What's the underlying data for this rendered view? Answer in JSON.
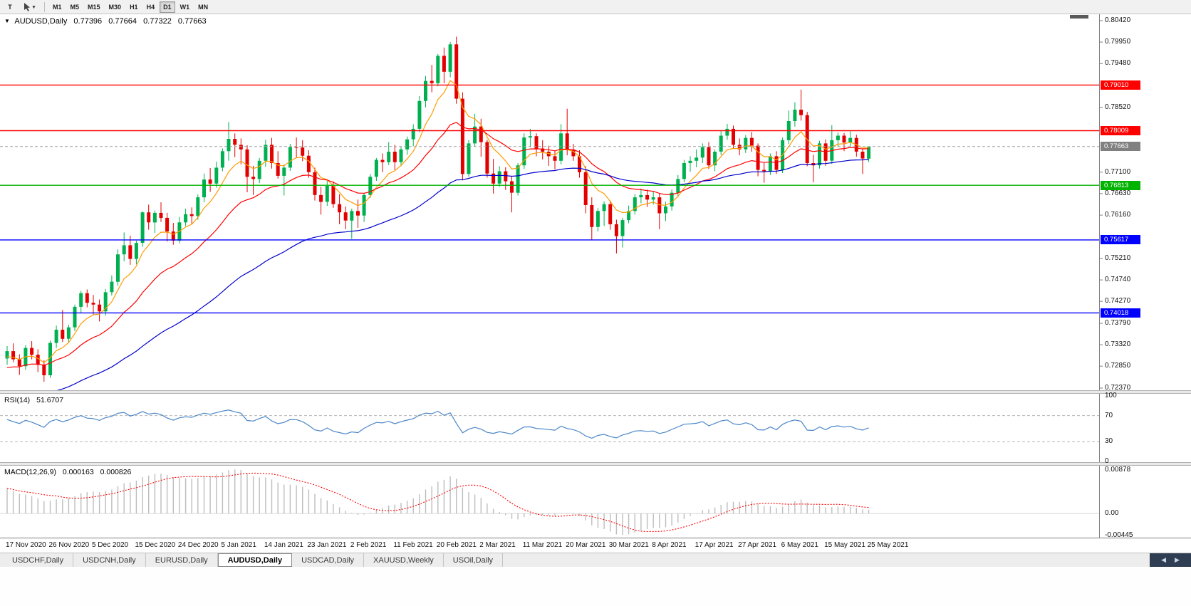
{
  "toolbar": {
    "t_label": "T",
    "timeframes": [
      "M1",
      "M5",
      "M15",
      "M30",
      "H1",
      "H4",
      "D1",
      "W1",
      "MN"
    ],
    "active_timeframe": "D1"
  },
  "icons": {
    "one_click_trading": "▼",
    "pointer_dropdown": "▾",
    "tab_scroll_left": "◀",
    "tab_scroll_right": "▶"
  },
  "chart": {
    "title": "AUDUSD,Daily",
    "open": "0.77396",
    "high": "0.77664",
    "low": "0.77322",
    "close": "0.77663"
  },
  "rsi": {
    "label": "RSI(14)",
    "value": "51.6707",
    "axis": [
      {
        "label": "100",
        "value": 100
      },
      {
        "label": "70",
        "value": 70
      },
      {
        "label": "30",
        "value": 30
      },
      {
        "label": "0",
        "value": 0
      }
    ]
  },
  "macd": {
    "label": "MACD(12,26,9)",
    "value_main": "0.000163",
    "value_signal": "0.000826",
    "axis": [
      {
        "label": "0.00878",
        "value": 0.00878
      },
      {
        "label": "0.00",
        "value": 0
      },
      {
        "label": "-0.00445",
        "value": -0.00445
      }
    ]
  },
  "price_axis": {
    "ticks": [
      "0.80420",
      "0.79950",
      "0.79480",
      "0.78520",
      "0.77100",
      "0.76630",
      "0.76160",
      "0.75210",
      "0.74740",
      "0.74270",
      "0.73790",
      "0.73320",
      "0.72850",
      "0.72370"
    ]
  },
  "tabs": {
    "items": [
      "USDCHF,Daily",
      "USDCNH,Daily",
      "EURUSD,Daily",
      "AUDUSD,Daily",
      "USDCAD,Daily",
      "XAUUSD,Weekly",
      "USOil,Daily"
    ],
    "active_index": 3
  },
  "chart_data": {
    "type": "candlestick",
    "symbol": "AUDUSD",
    "period": "Daily",
    "current_ohlc": {
      "open": 0.77396,
      "high": 0.77664,
      "low": 0.77322,
      "close": 0.77663
    },
    "colors": {
      "up": "#00b050",
      "down": "#e30000"
    },
    "y_range": [
      0.7237,
      0.8042
    ],
    "x_ticks": [
      {
        "label": "17 Nov 2020",
        "i": 0
      },
      {
        "label": "26 Nov 2020",
        "i": 7
      },
      {
        "label": "5 Dec 2020",
        "i": 14
      },
      {
        "label": "15 Dec 2020",
        "i": 21
      },
      {
        "label": "24 Dec 2020",
        "i": 28
      },
      {
        "label": "5 Jan 2021",
        "i": 35
      },
      {
        "label": "14 Jan 2021",
        "i": 42
      },
      {
        "label": "23 Jan 2021",
        "i": 49
      },
      {
        "label": "2 Feb 2021",
        "i": 56
      },
      {
        "label": "11 Feb 2021",
        "i": 63
      },
      {
        "label": "20 Feb 2021",
        "i": 70
      },
      {
        "label": "2 Mar 2021",
        "i": 77
      },
      {
        "label": "11 Mar 2021",
        "i": 84
      },
      {
        "label": "20 Mar 2021",
        "i": 91
      },
      {
        "label": "30 Mar 2021",
        "i": 98
      },
      {
        "label": "8 Apr 2021",
        "i": 105
      },
      {
        "label": "17 Apr 2021",
        "i": 112
      },
      {
        "label": "27 Apr 2021",
        "i": 119
      },
      {
        "label": "6 May 2021",
        "i": 126
      },
      {
        "label": "15 May 2021",
        "i": 133
      },
      {
        "label": "25 May 2021",
        "i": 140
      }
    ],
    "levels": [
      {
        "price": 0.7901,
        "label": "0.79010",
        "color": "#ff0000",
        "type": "resistance"
      },
      {
        "price": 0.78009,
        "label": "0.78009",
        "color": "#ff0000",
        "type": "resistance"
      },
      {
        "price": 0.77663,
        "label": "0.77663",
        "color": "#808080",
        "type": "current-price"
      },
      {
        "price": 0.76813,
        "label": "0.76813",
        "color": "#00b300",
        "type": "support"
      },
      {
        "price": 0.75617,
        "label": "0.75617",
        "color": "#0000ff",
        "type": "support"
      },
      {
        "price": 0.74018,
        "label": "0.74018",
        "color": "#0000ff",
        "type": "support"
      }
    ],
    "moving_averages": [
      {
        "period": 7,
        "color": "#ff9c00",
        "seed": 0.7302
      },
      {
        "period": 20,
        "color": "#ff0000",
        "seed": 0.7278
      },
      {
        "period": 55,
        "color": "#0000cc",
        "seed": 0.72
      }
    ],
    "subcharts": [
      {
        "name": "RSI",
        "params": "14",
        "value": 51.6707,
        "range": [
          0,
          100
        ],
        "levels": [
          70,
          30
        ],
        "color": "#4a86c8",
        "seed_gain": 0.0016,
        "seed_loss": 0.0009
      },
      {
        "name": "MACD",
        "params": "12,26,9",
        "value_main": 0.000163,
        "value_signal": 0.000826,
        "range": [
          -0.00445,
          0.00878
        ],
        "bar_color": "#bdbdbd",
        "signal_color": "#ff0000",
        "fast": 12,
        "slow": 26,
        "signal": 9
      }
    ],
    "candles_ohlc": [
      [
        0.7302,
        0.7329,
        0.7288,
        0.7318
      ],
      [
        0.7318,
        0.7335,
        0.7294,
        0.73
      ],
      [
        0.73,
        0.7311,
        0.7266,
        0.7285
      ],
      [
        0.7285,
        0.7331,
        0.7277,
        0.7325
      ],
      [
        0.7325,
        0.734,
        0.73,
        0.731
      ],
      [
        0.731,
        0.7322,
        0.7272,
        0.7288
      ],
      [
        0.7288,
        0.7298,
        0.7251,
        0.7265
      ],
      [
        0.7265,
        0.7341,
        0.7259,
        0.7336
      ],
      [
        0.7336,
        0.7374,
        0.7325,
        0.7365
      ],
      [
        0.7365,
        0.7408,
        0.7338,
        0.7345
      ],
      [
        0.7345,
        0.7376,
        0.7337,
        0.737
      ],
      [
        0.737,
        0.742,
        0.7362,
        0.7415
      ],
      [
        0.7415,
        0.745,
        0.7402,
        0.7445
      ],
      [
        0.7445,
        0.7453,
        0.7414,
        0.7424
      ],
      [
        0.7424,
        0.7441,
        0.7398,
        0.742
      ],
      [
        0.742,
        0.7431,
        0.7383,
        0.7405
      ],
      [
        0.7405,
        0.7454,
        0.7396,
        0.7447
      ],
      [
        0.7447,
        0.7484,
        0.744,
        0.747
      ],
      [
        0.747,
        0.7541,
        0.7461,
        0.753
      ],
      [
        0.753,
        0.7578,
        0.7515,
        0.755
      ],
      [
        0.755,
        0.7571,
        0.7507,
        0.752
      ],
      [
        0.752,
        0.756,
        0.7508,
        0.7555
      ],
      [
        0.7555,
        0.7624,
        0.7547,
        0.7622
      ],
      [
        0.7622,
        0.7639,
        0.7584,
        0.76
      ],
      [
        0.76,
        0.7626,
        0.7577,
        0.7621
      ],
      [
        0.7621,
        0.7644,
        0.7601,
        0.761
      ],
      [
        0.761,
        0.7621,
        0.7558,
        0.758
      ],
      [
        0.758,
        0.7599,
        0.7551,
        0.756
      ],
      [
        0.756,
        0.7612,
        0.7554,
        0.76
      ],
      [
        0.76,
        0.763,
        0.7592,
        0.7618
      ],
      [
        0.7618,
        0.7633,
        0.7597,
        0.7614
      ],
      [
        0.7614,
        0.7661,
        0.7606,
        0.7655
      ],
      [
        0.7655,
        0.7707,
        0.7644,
        0.7694
      ],
      [
        0.7694,
        0.7719,
        0.7667,
        0.7685
      ],
      [
        0.7685,
        0.7733,
        0.7676,
        0.772
      ],
      [
        0.772,
        0.7762,
        0.7712,
        0.7756
      ],
      [
        0.7756,
        0.782,
        0.7735,
        0.7783
      ],
      [
        0.7783,
        0.7795,
        0.7743,
        0.777
      ],
      [
        0.777,
        0.7784,
        0.7727,
        0.776
      ],
      [
        0.776,
        0.7769,
        0.7666,
        0.77
      ],
      [
        0.77,
        0.7724,
        0.766,
        0.7695
      ],
      [
        0.7695,
        0.7741,
        0.7686,
        0.7735
      ],
      [
        0.7735,
        0.7781,
        0.7722,
        0.777
      ],
      [
        0.777,
        0.7785,
        0.7718,
        0.773
      ],
      [
        0.773,
        0.7756,
        0.7696,
        0.7702
      ],
      [
        0.7702,
        0.7727,
        0.7659,
        0.772
      ],
      [
        0.772,
        0.7772,
        0.7713,
        0.7765
      ],
      [
        0.7765,
        0.7786,
        0.7741,
        0.7764
      ],
      [
        0.7764,
        0.778,
        0.7734,
        0.7746
      ],
      [
        0.7746,
        0.7758,
        0.7698,
        0.771
      ],
      [
        0.771,
        0.772,
        0.7648,
        0.766
      ],
      [
        0.766,
        0.7678,
        0.7617,
        0.7645
      ],
      [
        0.7645,
        0.7691,
        0.7636,
        0.768
      ],
      [
        0.768,
        0.769,
        0.7632,
        0.764
      ],
      [
        0.764,
        0.7662,
        0.7596,
        0.7622
      ],
      [
        0.7622,
        0.7635,
        0.7585,
        0.7604
      ],
      [
        0.7604,
        0.763,
        0.7564,
        0.7625
      ],
      [
        0.7625,
        0.765,
        0.7588,
        0.7615
      ],
      [
        0.7615,
        0.7665,
        0.7601,
        0.766
      ],
      [
        0.766,
        0.7706,
        0.7654,
        0.77
      ],
      [
        0.77,
        0.7741,
        0.7691,
        0.7737
      ],
      [
        0.7737,
        0.7751,
        0.771,
        0.7732
      ],
      [
        0.7732,
        0.7776,
        0.7726,
        0.7755
      ],
      [
        0.7755,
        0.777,
        0.7715,
        0.7732
      ],
      [
        0.7732,
        0.7767,
        0.7723,
        0.776
      ],
      [
        0.776,
        0.7788,
        0.7748,
        0.7782
      ],
      [
        0.7782,
        0.7815,
        0.7767,
        0.7805
      ],
      [
        0.7805,
        0.7877,
        0.7798,
        0.7866
      ],
      [
        0.7866,
        0.7921,
        0.7852,
        0.791
      ],
      [
        0.791,
        0.7945,
        0.7885,
        0.7905
      ],
      [
        0.7905,
        0.7969,
        0.7898,
        0.7965
      ],
      [
        0.7965,
        0.7983,
        0.7905,
        0.793
      ],
      [
        0.793,
        0.7995,
        0.7918,
        0.799
      ],
      [
        0.799,
        0.8007,
        0.786,
        0.7871
      ],
      [
        0.7871,
        0.7885,
        0.7692,
        0.7706
      ],
      [
        0.7706,
        0.778,
        0.77,
        0.7773
      ],
      [
        0.7773,
        0.7838,
        0.7766,
        0.781
      ],
      [
        0.781,
        0.7827,
        0.7744,
        0.7776
      ],
      [
        0.7776,
        0.7781,
        0.7698,
        0.7707
      ],
      [
        0.7707,
        0.7739,
        0.7663,
        0.7685
      ],
      [
        0.7685,
        0.7723,
        0.7678,
        0.7712
      ],
      [
        0.7712,
        0.7721,
        0.7671,
        0.769
      ],
      [
        0.769,
        0.7701,
        0.7622,
        0.7665
      ],
      [
        0.7665,
        0.773,
        0.7659,
        0.7725
      ],
      [
        0.7725,
        0.7795,
        0.7717,
        0.7786
      ],
      [
        0.7786,
        0.7805,
        0.7765,
        0.7789
      ],
      [
        0.7789,
        0.7795,
        0.7745,
        0.7762
      ],
      [
        0.7762,
        0.778,
        0.7738,
        0.7755
      ],
      [
        0.7755,
        0.7768,
        0.7724,
        0.7745
      ],
      [
        0.7745,
        0.7757,
        0.7716,
        0.7735
      ],
      [
        0.7735,
        0.7815,
        0.7727,
        0.7795
      ],
      [
        0.7795,
        0.7849,
        0.7747,
        0.776
      ],
      [
        0.776,
        0.7772,
        0.7735,
        0.7745
      ],
      [
        0.7745,
        0.7758,
        0.7698,
        0.771
      ],
      [
        0.771,
        0.7723,
        0.762,
        0.7638
      ],
      [
        0.7638,
        0.7655,
        0.7562,
        0.759
      ],
      [
        0.759,
        0.7631,
        0.758,
        0.7625
      ],
      [
        0.7625,
        0.7646,
        0.7592,
        0.764
      ],
      [
        0.764,
        0.7648,
        0.7584,
        0.7596
      ],
      [
        0.7596,
        0.7606,
        0.7532,
        0.757
      ],
      [
        0.757,
        0.761,
        0.7545,
        0.7605
      ],
      [
        0.7605,
        0.7637,
        0.7598,
        0.7625
      ],
      [
        0.7625,
        0.7662,
        0.7617,
        0.7655
      ],
      [
        0.7655,
        0.7674,
        0.7642,
        0.766
      ],
      [
        0.766,
        0.7672,
        0.7634,
        0.765
      ],
      [
        0.765,
        0.7668,
        0.7639,
        0.7655
      ],
      [
        0.7655,
        0.7663,
        0.7585,
        0.762
      ],
      [
        0.762,
        0.7645,
        0.7603,
        0.7635
      ],
      [
        0.7635,
        0.7672,
        0.7626,
        0.7665
      ],
      [
        0.7665,
        0.7704,
        0.7657,
        0.7695
      ],
      [
        0.7695,
        0.7737,
        0.7688,
        0.773
      ],
      [
        0.773,
        0.7745,
        0.7711,
        0.7735
      ],
      [
        0.7735,
        0.776,
        0.7721,
        0.7742
      ],
      [
        0.7742,
        0.7773,
        0.773,
        0.7765
      ],
      [
        0.7765,
        0.7776,
        0.7717,
        0.7725
      ],
      [
        0.7725,
        0.776,
        0.7712,
        0.7755
      ],
      [
        0.7755,
        0.78,
        0.7748,
        0.779
      ],
      [
        0.779,
        0.7816,
        0.7781,
        0.7805
      ],
      [
        0.7805,
        0.7812,
        0.7762,
        0.777
      ],
      [
        0.777,
        0.7784,
        0.7747,
        0.776
      ],
      [
        0.776,
        0.7791,
        0.7752,
        0.7785
      ],
      [
        0.7785,
        0.7798,
        0.7755,
        0.7768
      ],
      [
        0.7768,
        0.7773,
        0.7701,
        0.7715
      ],
      [
        0.7715,
        0.773,
        0.7687,
        0.7712
      ],
      [
        0.7712,
        0.7751,
        0.7704,
        0.7745
      ],
      [
        0.7745,
        0.7756,
        0.7706,
        0.7715
      ],
      [
        0.7715,
        0.7786,
        0.7708,
        0.778
      ],
      [
        0.778,
        0.7845,
        0.7772,
        0.7822
      ],
      [
        0.7822,
        0.7863,
        0.781,
        0.7847
      ],
      [
        0.7847,
        0.7891,
        0.7823,
        0.7835
      ],
      [
        0.7835,
        0.7842,
        0.7723,
        0.773
      ],
      [
        0.773,
        0.7748,
        0.7688,
        0.7725
      ],
      [
        0.7725,
        0.7779,
        0.7718,
        0.7773
      ],
      [
        0.7773,
        0.7782,
        0.7724,
        0.7735
      ],
      [
        0.7735,
        0.7813,
        0.7728,
        0.778
      ],
      [
        0.778,
        0.7797,
        0.7765,
        0.779
      ],
      [
        0.779,
        0.7796,
        0.7756,
        0.7775
      ],
      [
        0.7775,
        0.78,
        0.7766,
        0.7785
      ],
      [
        0.7785,
        0.7792,
        0.7744,
        0.7755
      ],
      [
        0.7755,
        0.7762,
        0.7706,
        0.774
      ],
      [
        0.77396,
        0.77664,
        0.77322,
        0.77663
      ]
    ]
  }
}
